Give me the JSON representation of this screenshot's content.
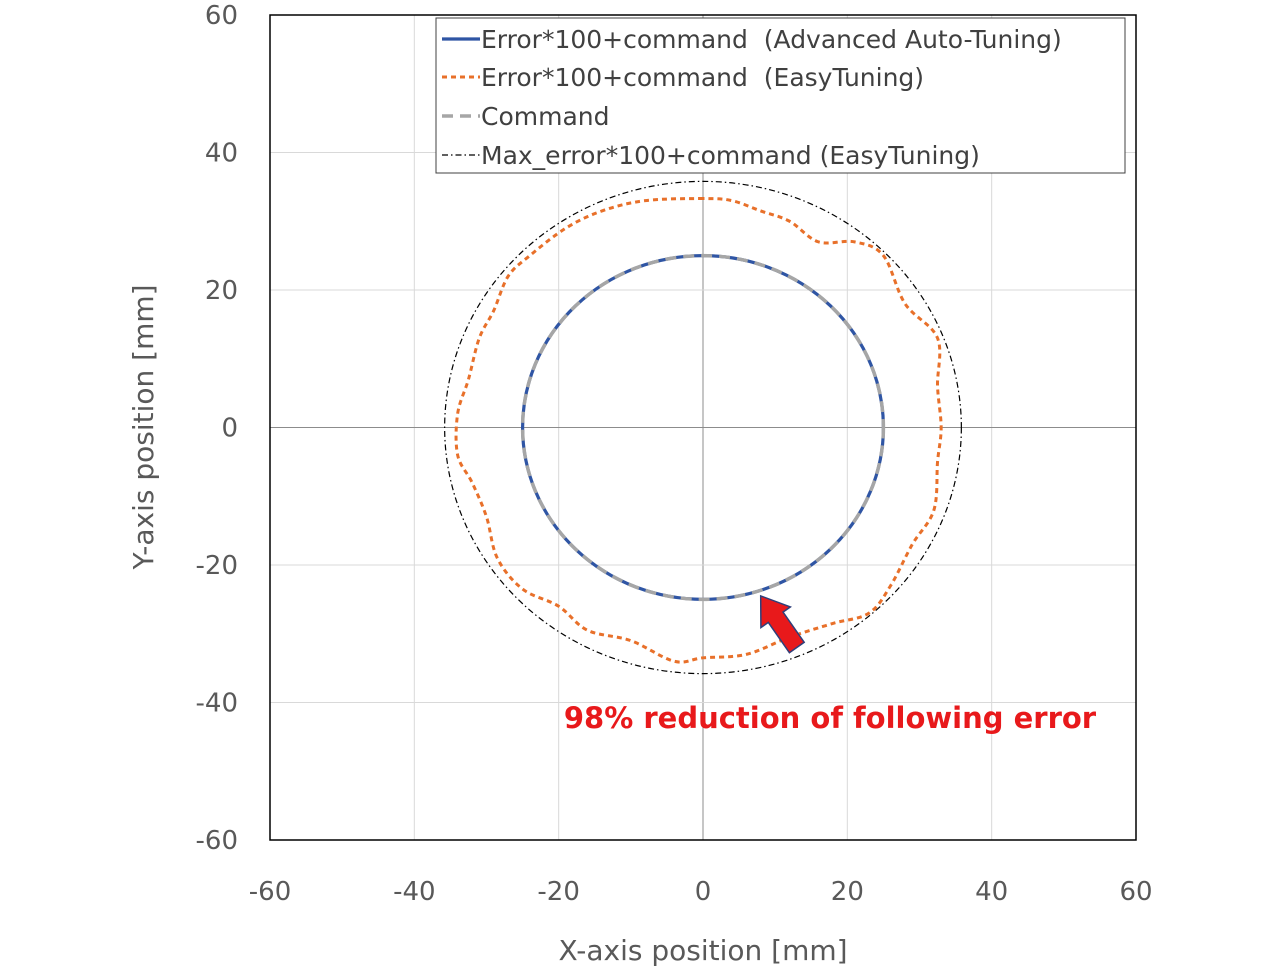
{
  "chart_data": {
    "type": "line",
    "title": "",
    "xlabel": "X-axis position [mm]",
    "ylabel": "Y-axis  position [mm]",
    "xlim": [
      -60,
      60
    ],
    "ylim": [
      -60,
      60
    ],
    "xticks": [
      -60,
      -40,
      -20,
      0,
      20,
      40,
      60
    ],
    "yticks": [
      60,
      40,
      20,
      0,
      -20,
      -40,
      -60
    ],
    "grid": true,
    "legend_position": "top-right",
    "series": [
      {
        "name": "Error*100+command  (Advanced Auto-Tuning)",
        "color": "#2f55a4",
        "style": "solid",
        "shape": "circle",
        "radius": 25,
        "points": [
          [
            25,
            0
          ],
          [
            21.7,
            12.5
          ],
          [
            12.5,
            21.7
          ],
          [
            0,
            25
          ],
          [
            -12.5,
            21.7
          ],
          [
            -21.7,
            12.5
          ],
          [
            -25,
            0
          ],
          [
            -21.7,
            -12.5
          ],
          [
            -12.5,
            -21.7
          ],
          [
            0,
            -25
          ],
          [
            12.5,
            -21.7
          ],
          [
            21.7,
            -12.5
          ],
          [
            25,
            0
          ]
        ]
      },
      {
        "name": "Error*100+command  (EasyTuning)",
        "color": "#e8702a",
        "style": "dashed",
        "shape": "wavy",
        "points": [
          [
            0,
            33.3
          ],
          [
            -8,
            33
          ],
          [
            -14,
            31.5
          ],
          [
            -19,
            29
          ],
          [
            -24,
            25
          ],
          [
            -27,
            22
          ],
          [
            -29,
            17
          ],
          [
            -31,
            13
          ],
          [
            -32.5,
            7
          ],
          [
            -34,
            2
          ],
          [
            -34,
            -4
          ],
          [
            -32,
            -8
          ],
          [
            -30,
            -13
          ],
          [
            -28.5,
            -19
          ],
          [
            -25,
            -23.5
          ],
          [
            -20,
            -26
          ],
          [
            -16,
            -29.5
          ],
          [
            -10,
            -31
          ],
          [
            -4,
            -34
          ],
          [
            0,
            -33.5
          ],
          [
            6,
            -33
          ],
          [
            12,
            -30.5
          ],
          [
            18,
            -28.5
          ],
          [
            23,
            -27
          ],
          [
            26,
            -23
          ],
          [
            29,
            -17
          ],
          [
            32,
            -12
          ],
          [
            32.5,
            -5
          ],
          [
            33,
            0
          ],
          [
            32.5,
            6
          ],
          [
            32.5,
            13
          ],
          [
            28,
            18
          ],
          [
            25,
            25
          ],
          [
            21,
            27
          ],
          [
            16,
            27
          ],
          [
            12,
            30
          ],
          [
            8,
            31.5
          ],
          [
            4,
            33
          ],
          [
            0,
            33.3
          ]
        ]
      },
      {
        "name": "Command",
        "color": "#a6a6a6",
        "style": "long-dash",
        "shape": "circle",
        "radius": 25,
        "points": [
          [
            25,
            0
          ],
          [
            21.7,
            12.5
          ],
          [
            12.5,
            21.7
          ],
          [
            0,
            25
          ],
          [
            -12.5,
            21.7
          ],
          [
            -21.7,
            12.5
          ],
          [
            -25,
            0
          ],
          [
            -21.7,
            -12.5
          ],
          [
            -12.5,
            -21.7
          ],
          [
            0,
            -25
          ],
          [
            12.5,
            -21.7
          ],
          [
            21.7,
            -12.5
          ],
          [
            25,
            0
          ]
        ]
      },
      {
        "name": "Max_error*100+command (EasyTuning)",
        "color": "#000000",
        "style": "dash-dot",
        "shape": "circle",
        "radius": 35.8,
        "points": [
          [
            35.8,
            0
          ],
          [
            31,
            17.9
          ],
          [
            17.9,
            31
          ],
          [
            0,
            35.8
          ],
          [
            -17.9,
            31
          ],
          [
            -31,
            17.9
          ],
          [
            -35.8,
            0
          ],
          [
            -31,
            -17.9
          ],
          [
            -17.9,
            -31
          ],
          [
            0,
            -35.8
          ],
          [
            17.9,
            -31
          ],
          [
            31,
            -17.9
          ],
          [
            35.8,
            0
          ]
        ]
      }
    ],
    "annotations": [
      {
        "text": "98% reduction of following error",
        "color": "#e8191b",
        "arrow_from": [
          13,
          -32
        ],
        "arrow_to": [
          8,
          -24.5
        ]
      }
    ]
  }
}
